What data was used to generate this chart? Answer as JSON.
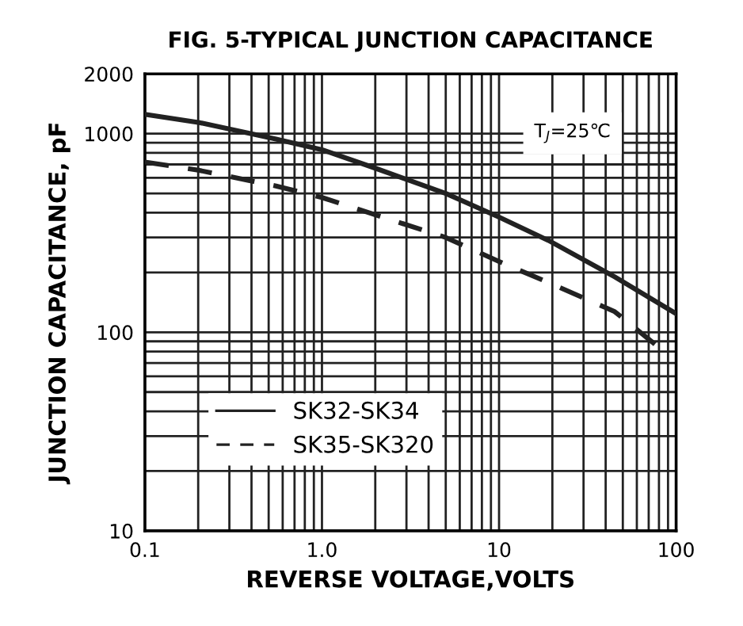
{
  "chart_data": {
    "type": "line",
    "title": "FIG. 5-TYPICAL JUNCTION CAPACITANCE",
    "xlabel": "REVERSE VOLTAGE,VOLTS",
    "ylabel": "JUNCTION CAPACITANCE, pF",
    "annotations": [
      "T$_{J}$=25℃"
    ],
    "log": "xy",
    "xlim": [
      0.1,
      100
    ],
    "ylim": [
      10,
      2000
    ],
    "xticks": [
      0.1,
      {
        "value": 1,
        "label": "1.0"
      },
      10,
      100
    ],
    "yticks": [
      10,
      100,
      1000,
      2000
    ],
    "grid": true,
    "legend": "bottom left",
    "series": [
      {
        "name": "SK32-SK34",
        "color": "#222222",
        "line_style": "solid",
        "x": [
          0.1,
          0.2,
          0.55,
          1,
          2,
          5,
          10,
          19,
          45,
          100
        ],
        "values": [
          1250,
          1140,
          940,
          830,
          670,
          500,
          380,
          290,
          190,
          124
        ]
      },
      {
        "name": "SK35-SK320",
        "color": "#222222",
        "line_style": "dashed",
        "x": [
          0.1,
          0.2,
          0.55,
          1,
          2.2,
          5,
          10,
          19,
          45,
          84
        ],
        "values": [
          720,
          655,
          545,
          477,
          380,
          300,
          227,
          178,
          127,
          81
        ]
      }
    ]
  }
}
